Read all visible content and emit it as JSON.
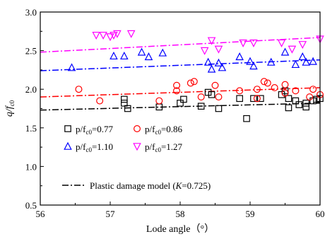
{
  "chart_data": {
    "type": "scatter",
    "xlabel": "Lode angle（°）",
    "ylabel_main": "q/f",
    "ylabel_sub": "c0",
    "xlim": [
      56,
      60
    ],
    "ylim": [
      0.5,
      3.0
    ],
    "xticks": [
      "56",
      "57",
      "58",
      "59",
      "60"
    ],
    "yticks": [
      "0.5",
      "1.0",
      "1.5",
      "2.0",
      "2.5",
      "3.0"
    ],
    "grid": false,
    "legend_placement": "bottom-left",
    "series": [
      {
        "label_prefix": "p/f",
        "label_sub": "c0",
        "label_suffix": "=0.77",
        "marker": "square",
        "color": "#000000",
        "points": [
          [
            57.2,
            1.87
          ],
          [
            57.2,
            1.82
          ],
          [
            57.25,
            1.75
          ],
          [
            57.7,
            1.77
          ],
          [
            58.0,
            1.82
          ],
          [
            58.05,
            1.87
          ],
          [
            58.3,
            1.78
          ],
          [
            58.4,
            1.96
          ],
          [
            58.45,
            1.93
          ],
          [
            58.55,
            1.75
          ],
          [
            58.85,
            1.88
          ],
          [
            58.95,
            1.62
          ],
          [
            59.05,
            1.88
          ],
          [
            59.15,
            1.88
          ],
          [
            59.45,
            1.93
          ],
          [
            59.5,
            1.98
          ],
          [
            59.55,
            1.76
          ],
          [
            59.55,
            1.88
          ],
          [
            59.65,
            1.85
          ],
          [
            59.7,
            1.8
          ],
          [
            59.8,
            1.77
          ],
          [
            59.8,
            1.82
          ],
          [
            59.9,
            1.85
          ],
          [
            59.95,
            1.87
          ],
          [
            60.0,
            1.88
          ]
        ]
      },
      {
        "label_prefix": "p/f",
        "label_sub": "c0",
        "label_suffix": "=0.86",
        "marker": "circle",
        "color": "#ff0000",
        "points": [
          [
            56.55,
            2.0
          ],
          [
            56.85,
            1.85
          ],
          [
            57.7,
            1.85
          ],
          [
            57.95,
            2.05
          ],
          [
            57.95,
            1.98
          ],
          [
            58.15,
            2.08
          ],
          [
            58.2,
            2.1
          ],
          [
            58.3,
            1.9
          ],
          [
            58.5,
            2.05
          ],
          [
            58.55,
            1.9
          ],
          [
            58.85,
            1.98
          ],
          [
            59.1,
            2.0
          ],
          [
            59.1,
            1.88
          ],
          [
            59.2,
            2.1
          ],
          [
            59.25,
            2.08
          ],
          [
            59.35,
            2.02
          ],
          [
            59.5,
            2.06
          ],
          [
            59.5,
            1.95
          ],
          [
            59.65,
            1.98
          ],
          [
            59.85,
            1.9
          ],
          [
            59.9,
            2.0
          ],
          [
            60.0,
            1.93
          ]
        ]
      },
      {
        "label_prefix": "p/f",
        "label_sub": "c0",
        "label_suffix": "=1.10",
        "marker": "triangle-up",
        "color": "#0000ff",
        "points": [
          [
            56.45,
            2.28
          ],
          [
            57.05,
            2.43
          ],
          [
            57.2,
            2.43
          ],
          [
            57.45,
            2.48
          ],
          [
            57.55,
            2.42
          ],
          [
            57.75,
            2.47
          ],
          [
            58.4,
            2.35
          ],
          [
            58.45,
            2.26
          ],
          [
            58.55,
            2.34
          ],
          [
            58.6,
            2.28
          ],
          [
            58.85,
            2.42
          ],
          [
            59.0,
            2.36
          ],
          [
            59.05,
            2.3
          ],
          [
            59.3,
            2.35
          ],
          [
            59.5,
            2.48
          ],
          [
            59.65,
            2.32
          ],
          [
            59.75,
            2.42
          ],
          [
            59.8,
            2.35
          ],
          [
            59.9,
            2.36
          ]
        ]
      },
      {
        "label_prefix": "p/f",
        "label_sub": "c0",
        "label_suffix": "=1.27",
        "marker": "triangle-down",
        "color": "#ff00ff",
        "points": [
          [
            56.8,
            2.7
          ],
          [
            56.9,
            2.7
          ],
          [
            57.0,
            2.68
          ],
          [
            57.05,
            2.7
          ],
          [
            57.1,
            2.72
          ],
          [
            57.3,
            2.72
          ],
          [
            58.35,
            2.5
          ],
          [
            58.45,
            2.63
          ],
          [
            58.55,
            2.52
          ],
          [
            58.9,
            2.6
          ],
          [
            59.05,
            2.6
          ],
          [
            59.45,
            2.6
          ],
          [
            59.6,
            2.52
          ],
          [
            59.75,
            2.58
          ],
          [
            60.0,
            2.65
          ]
        ]
      }
    ],
    "model_lines": [
      {
        "name": "0.77",
        "color": "#000000",
        "x": [
          56.0,
          60.0
        ],
        "y": [
          1.73,
          1.82
        ]
      },
      {
        "name": "0.86",
        "color": "#ff0000",
        "x": [
          56.0,
          60.0
        ],
        "y": [
          1.9,
          2.02
        ]
      },
      {
        "name": "1.10",
        "color": "#0000ff",
        "x": [
          56.0,
          60.0
        ],
        "y": [
          2.24,
          2.38
        ]
      },
      {
        "name": "1.27",
        "color": "#ff00ff",
        "x": [
          56.0,
          60.0
        ],
        "y": [
          2.48,
          2.67
        ]
      }
    ],
    "model_legend": {
      "prefix": "Plastic damage model (",
      "var": "K",
      "suffix": "=0.725)"
    }
  }
}
